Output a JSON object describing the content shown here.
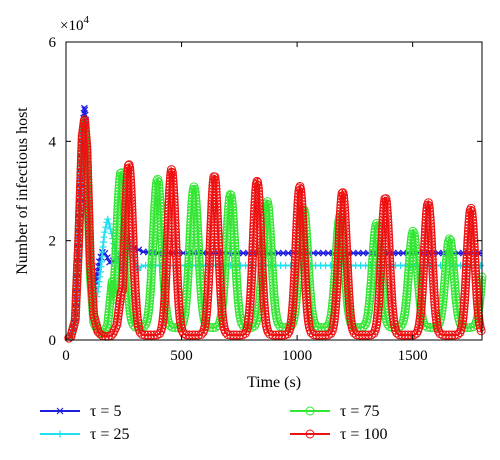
{
  "chart_data": {
    "type": "line",
    "title": "",
    "xlabel": "Time (s)",
    "ylabel": "Number of infectious host",
    "xlim": [
      0,
      1800
    ],
    "ylim": [
      0,
      6
    ],
    "y_multiplier_label": "×10",
    "y_multiplier_exponent": "4",
    "x_ticks": [
      "0",
      "500",
      "1000",
      "1500"
    ],
    "x_tick_values": [
      0,
      500,
      1000,
      1500
    ],
    "y_ticks": [
      "0",
      "2",
      "4",
      "6"
    ],
    "y_tick_values": [
      0,
      2,
      4,
      6
    ],
    "grid": false,
    "legend_position": "below",
    "series": [
      {
        "name": "τ = 5",
        "color": "#1f1fe0",
        "marker": "x",
        "x": [
          0,
          20,
          40,
          55,
          70,
          80,
          88,
          100,
          115,
          130,
          145,
          160,
          175,
          190,
          205,
          220,
          235,
          250,
          265,
          280,
          300,
          330,
          400,
          600,
          1000,
          1400,
          1800
        ],
        "y": [
          0.02,
          0.05,
          0.4,
          2.0,
          4.1,
          4.7,
          4.3,
          2.2,
          0.95,
          1.2,
          1.6,
          1.8,
          1.7,
          1.55,
          1.6,
          1.65,
          1.7,
          1.75,
          1.8,
          1.85,
          1.85,
          1.78,
          1.75,
          1.75,
          1.75,
          1.75,
          1.75
        ]
      },
      {
        "name": "τ = 25",
        "color": "#22e0f0",
        "marker": "+",
        "x": [
          0,
          20,
          40,
          55,
          70,
          80,
          90,
          105,
          120,
          135,
          150,
          165,
          180,
          200,
          220,
          240,
          255,
          270,
          290,
          310,
          330,
          360,
          400,
          600,
          1000,
          1400,
          1800
        ],
        "y": [
          0.02,
          0.05,
          0.4,
          2.0,
          4.0,
          4.4,
          3.8,
          1.6,
          0.7,
          0.9,
          1.4,
          2.1,
          2.45,
          2.1,
          1.6,
          1.4,
          1.9,
          2.1,
          1.7,
          1.4,
          1.5,
          1.5,
          1.5,
          1.5,
          1.5,
          1.5,
          1.5
        ]
      },
      {
        "name": "τ = 75",
        "color": "#33e633",
        "marker": "o",
        "period": 158,
        "trough": 0.25,
        "peak_start": 3.4,
        "peak_end": 1.9,
        "first_peak_x": 238,
        "width": 26,
        "x": [
          0,
          20,
          40,
          55,
          70,
          80,
          90,
          105,
          120,
          140,
          160,
          180,
          200
        ],
        "y": [
          0.02,
          0.05,
          0.4,
          2.0,
          4.0,
          4.4,
          3.8,
          1.3,
          0.35,
          0.15,
          0.12,
          0.3,
          1.2
        ]
      },
      {
        "name": "τ = 100",
        "color": "#ee1111",
        "marker": "o",
        "period": 185,
        "trough": 0.1,
        "peak_start": 3.55,
        "peak_end": 2.55,
        "first_peak_x": 272,
        "width": 24,
        "x": [
          0,
          20,
          40,
          55,
          70,
          80,
          90,
          105,
          120,
          140,
          160,
          180,
          200,
          220,
          240
        ],
        "y": [
          0.02,
          0.05,
          0.4,
          2.0,
          4.1,
          4.45,
          3.9,
          1.6,
          0.5,
          0.15,
          0.08,
          0.07,
          0.1,
          0.3,
          1.0
        ]
      }
    ]
  },
  "colors": {
    "axis": "#000000",
    "background": "#ffffff"
  }
}
